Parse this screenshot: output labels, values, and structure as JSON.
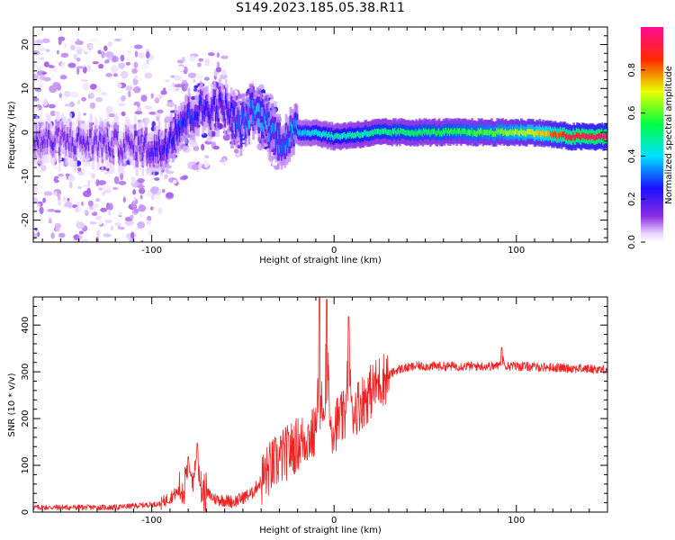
{
  "title": "S149.2023.185.05.38.R11",
  "chart_data": [
    {
      "type": "heatmap",
      "xlabel": "Height of straight line (km)",
      "ylabel": "Frequency (Hz)",
      "xlim": [
        -165,
        150
      ],
      "ylim": [
        -25,
        24
      ],
      "x_ticks": [
        -100,
        0,
        100
      ],
      "y_ticks": [
        -20,
        -10,
        0,
        10,
        20
      ],
      "colorbar": {
        "label": "Normalized spectral amplitude",
        "range": [
          0,
          1
        ],
        "ticks": [
          0.0,
          0.2,
          0.4,
          0.6,
          0.8
        ],
        "colormap": "rainbow (white-violet-blue-cyan-green-yellow-red-pink)"
      },
      "ridge": [
        {
          "x": -140,
          "y": -2,
          "amp": 0.15
        },
        {
          "x": -110,
          "y": -3,
          "amp": 0.15
        },
        {
          "x": -95,
          "y": -4,
          "amp": 0.22
        },
        {
          "x": -85,
          "y": 2,
          "amp": 0.28
        },
        {
          "x": -75,
          "y": 5,
          "amp": 0.25
        },
        {
          "x": -60,
          "y": 6,
          "amp": 0.22
        },
        {
          "x": -52,
          "y": 1,
          "amp": 0.3
        },
        {
          "x": -45,
          "y": 5,
          "amp": 0.35
        },
        {
          "x": -38,
          "y": 3,
          "amp": 0.35
        },
        {
          "x": -30,
          "y": -2,
          "amp": 0.3
        },
        {
          "x": -20,
          "y": 0,
          "amp": 0.38
        },
        {
          "x": -10,
          "y": 0,
          "amp": 0.42
        },
        {
          "x": 0,
          "y": -1,
          "amp": 0.45
        },
        {
          "x": 25,
          "y": 0,
          "amp": 0.5
        },
        {
          "x": 60,
          "y": 0,
          "amp": 0.55
        },
        {
          "x": 85,
          "y": 0,
          "amp": 0.6
        },
        {
          "x": 110,
          "y": 0,
          "amp": 0.7
        },
        {
          "x": 130,
          "y": -1,
          "amp": 0.9
        },
        {
          "x": 150,
          "y": -1,
          "amp": 0.95
        }
      ]
    },
    {
      "type": "line",
      "xlabel": "Height of straight line (km)",
      "ylabel": "SNR (10 * v/v)",
      "xlim": [
        -165,
        150
      ],
      "ylim": [
        0,
        460
      ],
      "x_ticks": [
        -100,
        0,
        100
      ],
      "y_ticks": [
        0,
        100,
        200,
        300,
        400
      ],
      "color": "#ee2222",
      "series": [
        {
          "baseline": [
            {
              "x": -165,
              "y": 10
            },
            {
              "x": -120,
              "y": 10
            },
            {
              "x": -95,
              "y": 18
            },
            {
              "x": -85,
              "y": 45
            },
            {
              "x": -78,
              "y": 75
            },
            {
              "x": -72,
              "y": 45
            },
            {
              "x": -65,
              "y": 28
            },
            {
              "x": -55,
              "y": 22
            },
            {
              "x": -45,
              "y": 40
            },
            {
              "x": -35,
              "y": 95
            },
            {
              "x": -25,
              "y": 130
            },
            {
              "x": -15,
              "y": 160
            },
            {
              "x": -5,
              "y": 175
            },
            {
              "x": 5,
              "y": 200
            },
            {
              "x": 15,
              "y": 235
            },
            {
              "x": 25,
              "y": 280
            },
            {
              "x": 35,
              "y": 305
            },
            {
              "x": 45,
              "y": 312
            },
            {
              "x": 80,
              "y": 312
            },
            {
              "x": 100,
              "y": 312
            },
            {
              "x": 150,
              "y": 305
            }
          ],
          "spikes": [
            {
              "x": -80,
              "y": 118
            },
            {
              "x": -75,
              "y": 147
            },
            {
              "x": -8,
              "y": 462
            },
            {
              "x": -4,
              "y": 455
            },
            {
              "x": 8,
              "y": 418
            },
            {
              "x": 92,
              "y": 352
            }
          ]
        }
      ]
    }
  ]
}
